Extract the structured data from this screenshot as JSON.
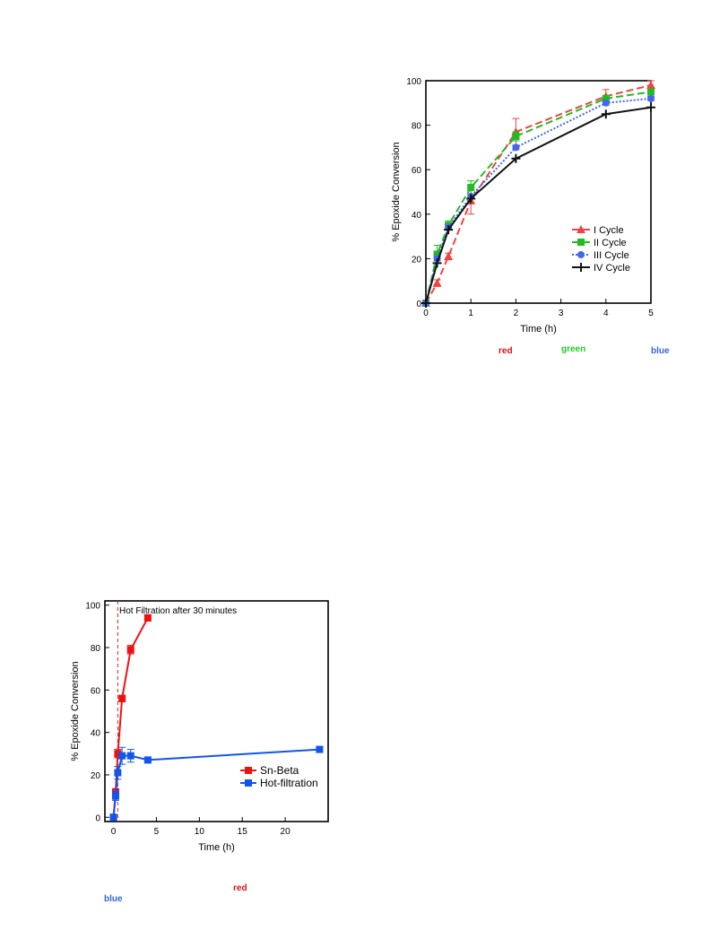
{
  "chart_data": [
    {
      "type": "line",
      "title": "",
      "xlabel": "Time (h)",
      "ylabel": "% Epoxide Conversion",
      "xlim": [
        0,
        5
      ],
      "ylim": [
        0,
        100
      ],
      "xticks": [
        "0",
        "1",
        "2",
        "3",
        "4",
        "5"
      ],
      "yticks": [
        "0",
        "20",
        "40",
        "60",
        "80",
        "100"
      ],
      "legend_position": "bottom-right",
      "series": [
        {
          "name": "I Cycle",
          "color": "#ee4444",
          "marker": "triangle",
          "line": "dashed",
          "x": [
            0,
            0.25,
            0.5,
            1,
            2,
            4,
            5
          ],
          "y": [
            0,
            9,
            21,
            46,
            77,
            93,
            98
          ],
          "err": [
            1,
            1.5,
            1.5,
            6,
            6,
            3,
            2
          ]
        },
        {
          "name": "II Cycle",
          "color": "#22bb22",
          "marker": "square",
          "line": "dashed",
          "x": [
            0,
            0.25,
            0.5,
            1,
            2,
            4,
            5
          ],
          "y": [
            0,
            22,
            35,
            52,
            75,
            92,
            95
          ],
          "err": [
            1,
            4,
            2,
            3,
            2,
            1,
            1
          ]
        },
        {
          "name": "III Cycle",
          "color": "#4466ee",
          "marker": "circle",
          "line": "dotted",
          "x": [
            0,
            0.25,
            0.5,
            1,
            2,
            4,
            5
          ],
          "y": [
            0,
            20,
            34,
            48,
            70,
            90,
            92
          ],
          "err": [
            1,
            1,
            1,
            1,
            1,
            1,
            1
          ]
        },
        {
          "name": "IV Cycle",
          "color": "#111111",
          "marker": "plus",
          "line": "solid",
          "x": [
            0,
            0.25,
            0.5,
            1,
            2,
            4,
            5
          ],
          "y": [
            0,
            18,
            33,
            47,
            65,
            85,
            88
          ],
          "err": [
            0,
            0,
            0,
            0,
            0,
            0,
            0
          ]
        }
      ]
    },
    {
      "type": "line",
      "title": "",
      "annotation": "Hot Filtration after 30 minutes",
      "xlabel": "Time (h)",
      "ylabel": "% Epoxide Conversion",
      "xlim": [
        -1,
        25
      ],
      "ylim": [
        -2,
        102
      ],
      "xticks": [
        "0",
        "5",
        "10",
        "15",
        "20"
      ],
      "yticks": [
        "0",
        "20",
        "40",
        "60",
        "80",
        "100"
      ],
      "legend_position": "right",
      "series": [
        {
          "name": "Sn-Beta",
          "color": "#ee1111",
          "marker": "square",
          "line": "solid",
          "x": [
            0,
            0.25,
            0.5,
            1,
            2,
            4
          ],
          "y": [
            0,
            12,
            30,
            56,
            79,
            94
          ],
          "err": [
            1,
            1.5,
            2,
            1.5,
            2,
            1.5
          ]
        },
        {
          "name": "Hot-filtration",
          "color": "#1155ee",
          "marker": "square",
          "line": "solid",
          "x": [
            0,
            0.25,
            0.5,
            1,
            2,
            4,
            24
          ],
          "y": [
            0,
            10,
            21,
            29,
            29,
            27,
            32
          ],
          "err": [
            1,
            2,
            3,
            4,
            3,
            1,
            1
          ]
        }
      ]
    }
  ],
  "captions": {
    "top": [
      {
        "text": "red",
        "color": "#dd1111"
      },
      {
        "text": "green",
        "color": "#22cc22"
      },
      {
        "text": "blue",
        "color": "#3366dd"
      }
    ],
    "bottom": [
      {
        "text": "red",
        "color": "#dd1111"
      },
      {
        "text": "blue",
        "color": "#3366dd"
      }
    ]
  }
}
